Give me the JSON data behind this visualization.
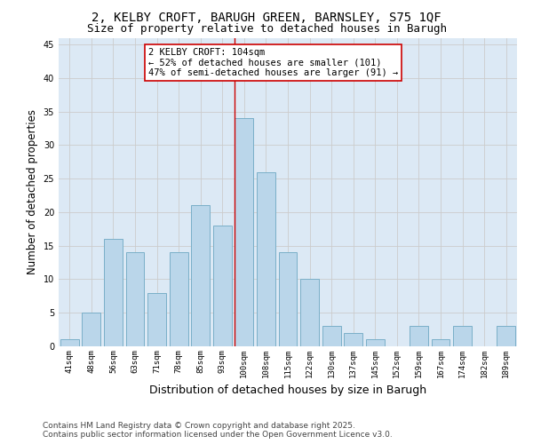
{
  "title_line1": "2, KELBY CROFT, BARUGH GREEN, BARNSLEY, S75 1QF",
  "title_line2": "Size of property relative to detached houses in Barugh",
  "xlabel": "Distribution of detached houses by size in Barugh",
  "ylabel": "Number of detached properties",
  "categories": [
    "41sqm",
    "48sqm",
    "56sqm",
    "63sqm",
    "71sqm",
    "78sqm",
    "85sqm",
    "93sqm",
    "100sqm",
    "108sqm",
    "115sqm",
    "122sqm",
    "130sqm",
    "137sqm",
    "145sqm",
    "152sqm",
    "159sqm",
    "167sqm",
    "174sqm",
    "182sqm",
    "189sqm"
  ],
  "values": [
    1,
    5,
    16,
    14,
    8,
    14,
    21,
    18,
    34,
    26,
    14,
    10,
    3,
    2,
    1,
    0,
    3,
    1,
    3,
    0,
    3
  ],
  "bar_color": "#bad6ea",
  "bar_edge_color": "#7aafc8",
  "highlight_index": 8,
  "highlight_line_color": "#cc0000",
  "annotation_text": "2 KELBY CROFT: 104sqm\n← 52% of detached houses are smaller (101)\n47% of semi-detached houses are larger (91) →",
  "annotation_box_color": "#cc0000",
  "annotation_bg": "#ffffff",
  "ylim": [
    0,
    46
  ],
  "yticks": [
    0,
    5,
    10,
    15,
    20,
    25,
    30,
    35,
    40,
    45
  ],
  "grid_color": "#cccccc",
  "bg_color": "#dce9f5",
  "footer_line1": "Contains HM Land Registry data © Crown copyright and database right 2025.",
  "footer_line2": "Contains public sector information licensed under the Open Government Licence v3.0.",
  "title_fontsize": 10,
  "subtitle_fontsize": 9,
  "axis_label_fontsize": 8.5,
  "tick_fontsize": 6.5,
  "annotation_fontsize": 7.5,
  "footer_fontsize": 6.5
}
